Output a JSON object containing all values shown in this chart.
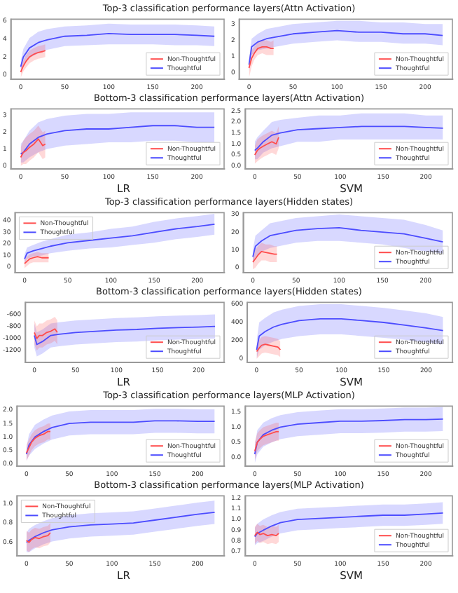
{
  "chart_data": [
    {
      "type": "line",
      "title": "Top-3 classification performance layers(Attn Activation)",
      "xlim": [
        -11,
        231
      ],
      "xticks": [
        0,
        50,
        100,
        150,
        200
      ],
      "ylim": [
        -0.5,
        6.2
      ],
      "yticks": [
        0,
        2,
        4,
        6
      ],
      "legend": "bottom right",
      "marker": "none",
      "series": [
        {
          "name": "Non-Thoughtful",
          "color": "#ff4c4c",
          "x": [
            0,
            3,
            6,
            10,
            15,
            20,
            25,
            28
          ],
          "values": [
            0.3,
            1.0,
            1.5,
            2.0,
            2.3,
            2.5,
            2.6,
            2.7
          ],
          "lower": [
            -0.3,
            0.4,
            0.8,
            1.3,
            1.6,
            1.8,
            1.9,
            2.0
          ],
          "upper": [
            0.9,
            1.6,
            2.2,
            2.7,
            3.0,
            3.2,
            3.3,
            3.4
          ]
        },
        {
          "name": "Thoughtful",
          "color": "#4c4cff",
          "x": [
            0,
            3,
            10,
            20,
            30,
            50,
            75,
            100,
            125,
            150,
            175,
            200,
            220
          ],
          "values": [
            0.9,
            2.0,
            3.0,
            3.6,
            3.9,
            4.3,
            4.4,
            4.6,
            4.5,
            4.5,
            4.5,
            4.4,
            4.3
          ],
          "lower": [
            0.3,
            1.1,
            1.9,
            2.4,
            2.8,
            3.2,
            3.3,
            3.4,
            3.4,
            3.4,
            3.3,
            3.3,
            3.2
          ],
          "upper": [
            1.5,
            2.9,
            4.1,
            4.8,
            5.1,
            5.4,
            5.5,
            5.7,
            5.6,
            5.6,
            5.6,
            5.5,
            5.4
          ]
        }
      ]
    },
    {
      "type": "line",
      "xlim": [
        -11,
        231
      ],
      "xticks": [
        0,
        50,
        100,
        150,
        200
      ],
      "ylim": [
        -0.4,
        3.3
      ],
      "yticks": [
        0,
        1,
        2,
        3
      ],
      "legend": "bottom right",
      "marker": "none",
      "series": [
        {
          "name": "Non-Thoughtful",
          "color": "#ff4c4c",
          "x": [
            0,
            3,
            6,
            10,
            15,
            20,
            25,
            28
          ],
          "values": [
            0.3,
            0.9,
            1.2,
            1.5,
            1.6,
            1.6,
            1.5,
            1.5
          ],
          "lower": [
            -0.3,
            0.4,
            0.8,
            1.1,
            1.2,
            1.1,
            1.1,
            1.1
          ],
          "upper": [
            0.9,
            1.4,
            1.6,
            1.9,
            2.0,
            2.0,
            1.9,
            2.0
          ]
        },
        {
          "name": "Thoughtful",
          "color": "#4c4cff",
          "x": [
            0,
            3,
            10,
            20,
            30,
            50,
            75,
            100,
            125,
            150,
            175,
            200,
            220
          ],
          "values": [
            0.5,
            1.6,
            1.9,
            2.1,
            2.2,
            2.4,
            2.5,
            2.6,
            2.5,
            2.5,
            2.4,
            2.4,
            2.3
          ],
          "lower": [
            0.1,
            1.1,
            1.4,
            1.5,
            1.6,
            1.8,
            1.9,
            2.0,
            1.9,
            1.9,
            1.8,
            1.8,
            1.7
          ],
          "upper": [
            0.9,
            2.1,
            2.4,
            2.7,
            2.8,
            3.0,
            3.1,
            3.2,
            3.2,
            3.1,
            3.1,
            3.0,
            3.0
          ]
        }
      ]
    },
    {
      "type": "line",
      "title": "Bottom-3 classification performance layers(Attn Activation)",
      "xlabel": "LR",
      "xlim": [
        -11,
        231
      ],
      "xticks": [
        0,
        50,
        100,
        150,
        200
      ],
      "ylim": [
        -0.2,
        3.4
      ],
      "yticks": [
        0,
        1,
        2,
        3
      ],
      "legend": "bottom right",
      "marker": "none",
      "series": [
        {
          "name": "Non-Thoughtful",
          "color": "#ff4c4c",
          "x": [
            0,
            3,
            6,
            10,
            15,
            20,
            25,
            28
          ],
          "values": [
            0.5,
            0.8,
            0.9,
            1.1,
            1.3,
            1.6,
            1.2,
            1.3
          ],
          "lower": [
            0.0,
            0.1,
            0.1,
            0.3,
            0.5,
            0.8,
            0.4,
            0.5
          ],
          "upper": [
            1.1,
            1.5,
            1.7,
            1.9,
            2.1,
            2.4,
            2.0,
            2.1
          ]
        },
        {
          "name": "Thoughtful",
          "color": "#4c4cff",
          "x": [
            0,
            3,
            10,
            20,
            30,
            50,
            75,
            100,
            125,
            150,
            175,
            200,
            220
          ],
          "values": [
            0.7,
            0.8,
            1.3,
            1.7,
            1.9,
            2.1,
            2.2,
            2.2,
            2.3,
            2.4,
            2.4,
            2.3,
            2.3
          ],
          "lower": [
            0.2,
            0.2,
            0.5,
            0.8,
            1.0,
            1.2,
            1.3,
            1.4,
            1.4,
            1.5,
            1.5,
            1.4,
            1.4
          ],
          "upper": [
            1.3,
            1.5,
            2.1,
            2.6,
            2.8,
            3.0,
            3.1,
            3.1,
            3.2,
            3.2,
            3.2,
            3.2,
            3.2
          ]
        }
      ]
    },
    {
      "type": "line",
      "xlabel": "SVM",
      "xlim": [
        -11,
        231
      ],
      "xticks": [
        0,
        50,
        100,
        150,
        200
      ],
      "ylim": [
        -0.15,
        2.6
      ],
      "yticks": [
        {
          "value": 0,
          "label": "0.0"
        },
        0.5,
        {
          "value": 1,
          "label": "1.0"
        },
        1.5,
        {
          "value": 2,
          "label": "2.0"
        },
        2.5
      ],
      "legend": "bottom right",
      "marker": "none",
      "series": [
        {
          "name": "Non-Thoughtful",
          "color": "#ff4c4c",
          "x": [
            0,
            3,
            6,
            10,
            15,
            20,
            25,
            28
          ],
          "values": [
            0.5,
            0.7,
            0.8,
            0.9,
            1.0,
            1.1,
            1.0,
            1.3
          ],
          "lower": [
            0.1,
            0.2,
            0.3,
            0.4,
            0.5,
            0.6,
            0.5,
            0.8
          ],
          "upper": [
            0.9,
            1.2,
            1.3,
            1.4,
            1.5,
            1.6,
            1.5,
            1.8
          ]
        },
        {
          "name": "Thoughtful",
          "color": "#4c4cff",
          "x": [
            0,
            3,
            10,
            20,
            30,
            50,
            75,
            100,
            125,
            150,
            175,
            200,
            220
          ],
          "values": [
            0.7,
            0.8,
            1.1,
            1.4,
            1.5,
            1.65,
            1.7,
            1.75,
            1.8,
            1.8,
            1.8,
            1.75,
            1.72
          ],
          "lower": [
            0.3,
            0.3,
            0.6,
            0.8,
            0.9,
            1.1,
            1.1,
            1.2,
            1.2,
            1.2,
            1.2,
            1.2,
            1.2
          ],
          "upper": [
            1.1,
            1.3,
            1.6,
            2.0,
            2.1,
            2.2,
            2.3,
            2.3,
            2.4,
            2.4,
            2.4,
            2.3,
            2.3
          ]
        }
      ]
    },
    {
      "type": "line",
      "title": "Top-3 classification performance layers(Hidden states)",
      "xlim": [
        -11,
        231
      ],
      "xticks": [
        0,
        50,
        100,
        150,
        200
      ],
      "ylim": [
        -5,
        47
      ],
      "yticks": [
        0,
        10,
        20,
        30,
        40
      ],
      "legend": "top left",
      "marker": "none",
      "series": [
        {
          "name": "Non-Thoughtful",
          "color": "#ff4c4c",
          "x": [
            0,
            3,
            6,
            10,
            15,
            20,
            25,
            28
          ],
          "values": [
            3,
            5,
            7,
            8,
            9,
            8,
            8,
            8
          ],
          "lower": [
            -1,
            1,
            3,
            4,
            4,
            4,
            4,
            4
          ],
          "upper": [
            7,
            9,
            11,
            12,
            13,
            12,
            12,
            12
          ]
        },
        {
          "name": "Thoughtful",
          "color": "#4c4cff",
          "x": [
            0,
            3,
            10,
            20,
            30,
            50,
            75,
            100,
            125,
            150,
            175,
            200,
            220
          ],
          "values": [
            7,
            12,
            14,
            16,
            18,
            21,
            23,
            25,
            27,
            30,
            33,
            35,
            37
          ],
          "lower": [
            3,
            7,
            9,
            10,
            12,
            14,
            16,
            17,
            19,
            21,
            24,
            26,
            28
          ],
          "upper": [
            11,
            17,
            19,
            22,
            24,
            28,
            30,
            33,
            35,
            39,
            42,
            44,
            46
          ]
        }
      ]
    },
    {
      "type": "line",
      "xlim": [
        -11,
        231
      ],
      "xticks": [
        0,
        50,
        100,
        150,
        200
      ],
      "ylim": [
        -3,
        31
      ],
      "yticks": [
        0,
        10,
        20,
        30
      ],
      "legend": "bottom right",
      "marker": "none",
      "series": [
        {
          "name": "Non-Thoughtful",
          "color": "#ff4c4c",
          "x": [
            0,
            3,
            6,
            10,
            15,
            20,
            25,
            28
          ],
          "values": [
            3,
            5,
            7,
            9,
            8.5,
            8,
            7.5,
            7.5
          ],
          "lower": [
            -1,
            0,
            2,
            4,
            4,
            3,
            3,
            3
          ],
          "upper": [
            7,
            10,
            12,
            14,
            13,
            13,
            12,
            12
          ]
        },
        {
          "name": "Thoughtful",
          "color": "#4c4cff",
          "x": [
            0,
            3,
            10,
            20,
            30,
            50,
            75,
            100,
            125,
            150,
            175,
            200,
            220
          ],
          "values": [
            6,
            12,
            15,
            18,
            19,
            21,
            22,
            22.5,
            21,
            20,
            19,
            16.5,
            14.5
          ],
          "lower": [
            2,
            6,
            9,
            11,
            12,
            14,
            15,
            15,
            14,
            13,
            11,
            9,
            8
          ],
          "upper": [
            10,
            18,
            21,
            25,
            26,
            28,
            29,
            30,
            29,
            28,
            27,
            24,
            21
          ]
        }
      ]
    },
    {
      "type": "line",
      "title": "Bottom-3 classification performance layers(Hidden states)",
      "xlabel": "LR",
      "xlim": [
        -11,
        231
      ],
      "xticks": [
        0,
        50,
        100,
        150,
        200
      ],
      "ylim": [
        -1400,
        -400
      ],
      "yticks": [
        -1200,
        -1000,
        -800,
        -600
      ],
      "legend": "bottom right",
      "marker": "none",
      "series": [
        {
          "name": "Non-Thoughtful",
          "color": "#ff4c4c",
          "x": [
            0,
            3,
            6,
            10,
            15,
            20,
            25,
            28
          ],
          "values": [
            -900,
            -1000,
            -950,
            -950,
            -900,
            -880,
            -840,
            -900
          ],
          "lower": [
            -1100,
            -1200,
            -1150,
            -1150,
            -1100,
            -1080,
            -1040,
            -1100
          ],
          "upper": [
            -700,
            -800,
            -750,
            -750,
            -700,
            -680,
            -640,
            -700
          ]
        },
        {
          "name": "Thoughtful",
          "color": "#4c4cff",
          "x": [
            0,
            3,
            10,
            20,
            30,
            50,
            75,
            100,
            125,
            150,
            175,
            200,
            220
          ],
          "values": [
            -950,
            -1100,
            -1050,
            -950,
            -930,
            -900,
            -880,
            -860,
            -850,
            -830,
            -820,
            -810,
            -800
          ],
          "lower": [
            -1150,
            -1300,
            -1250,
            -1150,
            -1130,
            -1100,
            -1080,
            -1060,
            -1050,
            -1030,
            -1020,
            -1010,
            -1000
          ],
          "upper": [
            -750,
            -900,
            -850,
            -750,
            -730,
            -700,
            -680,
            -660,
            -650,
            -630,
            -620,
            -610,
            -600
          ]
        }
      ]
    },
    {
      "type": "line",
      "xlabel": "SVM",
      "xlim": [
        -11,
        231
      ],
      "xticks": [
        0,
        50,
        100,
        150,
        200
      ],
      "ylim": [
        -40,
        620
      ],
      "yticks": [
        0,
        200,
        400,
        600
      ],
      "legend": "bottom right",
      "marker": "none",
      "series": [
        {
          "name": "Non-Thoughtful",
          "color": "#ff4c4c",
          "x": [
            0,
            3,
            6,
            10,
            15,
            20,
            25,
            28
          ],
          "values": [
            80,
            120,
            150,
            160,
            150,
            140,
            130,
            100
          ],
          "lower": [
            0,
            30,
            60,
            70,
            60,
            50,
            40,
            20
          ],
          "upper": [
            170,
            210,
            240,
            250,
            240,
            230,
            220,
            190
          ]
        },
        {
          "name": "Thoughtful",
          "color": "#4c4cff",
          "x": [
            0,
            3,
            10,
            20,
            30,
            50,
            75,
            100,
            125,
            150,
            175,
            200,
            220
          ],
          "values": [
            100,
            250,
            300,
            350,
            380,
            420,
            440,
            440,
            420,
            400,
            370,
            340,
            310
          ],
          "lower": [
            0,
            100,
            150,
            190,
            220,
            250,
            270,
            270,
            250,
            230,
            210,
            180,
            160
          ],
          "upper": [
            200,
            400,
            450,
            510,
            540,
            580,
            600,
            600,
            580,
            560,
            530,
            500,
            460
          ]
        }
      ]
    },
    {
      "type": "line",
      "title": "Top-3 classification performance layers(MLP Activation)",
      "xlim": [
        -11,
        231
      ],
      "xticks": [
        0,
        50,
        100,
        150,
        200
      ],
      "ylim": [
        -0.1,
        2.15
      ],
      "yticks": [
        {
          "value": 0,
          "label": "0.0"
        },
        0.5,
        {
          "value": 1,
          "label": "1.0"
        },
        1.5,
        {
          "value": 2,
          "label": "2.0"
        }
      ],
      "legend": "bottom right",
      "marker": "none",
      "series": [
        {
          "name": "Non-Thoughtful",
          "color": "#ff4c4c",
          "x": [
            0,
            3,
            6,
            10,
            15,
            20,
            25,
            28
          ],
          "values": [
            0.4,
            0.6,
            0.8,
            0.95,
            1.05,
            1.1,
            1.2,
            1.2
          ],
          "lower": [
            0.1,
            0.3,
            0.5,
            0.65,
            0.75,
            0.8,
            0.9,
            0.9
          ],
          "upper": [
            0.7,
            0.9,
            1.1,
            1.25,
            1.35,
            1.4,
            1.5,
            1.5
          ]
        },
        {
          "name": "Thoughtful",
          "color": "#4c4cff",
          "x": [
            0,
            3,
            10,
            20,
            30,
            50,
            75,
            100,
            125,
            150,
            175,
            200,
            220
          ],
          "values": [
            0.35,
            0.7,
            1.0,
            1.2,
            1.35,
            1.5,
            1.55,
            1.55,
            1.55,
            1.6,
            1.6,
            1.58,
            1.58
          ],
          "lower": [
            0.1,
            0.3,
            0.55,
            0.75,
            0.9,
            1.05,
            1.1,
            1.1,
            1.1,
            1.15,
            1.15,
            1.13,
            1.13
          ],
          "upper": [
            0.6,
            1.1,
            1.45,
            1.65,
            1.8,
            1.95,
            2.0,
            2.0,
            2.0,
            2.05,
            2.05,
            2.03,
            2.03
          ]
        }
      ]
    },
    {
      "type": "line",
      "xlim": [
        -11,
        231
      ],
      "xticks": [
        0,
        50,
        100,
        150,
        200
      ],
      "ylim": [
        -0.3,
        1.7
      ],
      "yticks": [
        {
          "value": 0,
          "label": "0.0"
        },
        0.5,
        {
          "value": 1,
          "label": "1.0"
        },
        1.5
      ],
      "legend": "bottom right",
      "marker": "none",
      "series": [
        {
          "name": "Non-Thoughtful",
          "color": "#ff4c4c",
          "x": [
            0,
            3,
            6,
            10,
            15,
            20,
            25,
            28
          ],
          "values": [
            0.2,
            0.5,
            0.6,
            0.7,
            0.75,
            0.8,
            0.85,
            0.85
          ],
          "lower": [
            -0.1,
            0.2,
            0.3,
            0.4,
            0.45,
            0.5,
            0.55,
            0.55
          ],
          "upper": [
            0.5,
            0.8,
            0.9,
            1.0,
            1.05,
            1.1,
            1.15,
            1.15
          ]
        },
        {
          "name": "Thoughtful",
          "color": "#4c4cff",
          "x": [
            0,
            3,
            10,
            20,
            30,
            50,
            75,
            100,
            125,
            150,
            175,
            200,
            220
          ],
          "values": [
            0.1,
            0.5,
            0.75,
            0.9,
            1.0,
            1.1,
            1.15,
            1.2,
            1.2,
            1.22,
            1.25,
            1.25,
            1.27
          ],
          "lower": [
            -0.2,
            0.1,
            0.35,
            0.5,
            0.6,
            0.7,
            0.75,
            0.8,
            0.8,
            0.82,
            0.85,
            0.85,
            0.87
          ],
          "upper": [
            0.4,
            0.9,
            1.15,
            1.3,
            1.4,
            1.5,
            1.55,
            1.6,
            1.6,
            1.62,
            1.65,
            1.65,
            1.67
          ]
        }
      ]
    },
    {
      "type": "line",
      "title": "Bottom-3 classification performance layers(MLP Activation)",
      "xlabel": "LR",
      "xlim": [
        -11,
        231
      ],
      "xticks": [
        0,
        50,
        100,
        150,
        200
      ],
      "ylim": [
        0.46,
        1.08
      ],
      "yticks": [
        0.6,
        0.8,
        {
          "value": 1,
          "label": "1.0"
        }
      ],
      "legend": "top left",
      "marker": "none",
      "series": [
        {
          "name": "Non-Thoughtful",
          "color": "#ff4c4c",
          "x": [
            0,
            3,
            6,
            10,
            15,
            20,
            25,
            28
          ],
          "values": [
            0.62,
            0.6,
            0.63,
            0.65,
            0.64,
            0.66,
            0.67,
            0.7
          ],
          "lower": [
            0.52,
            0.5,
            0.53,
            0.55,
            0.54,
            0.56,
            0.57,
            0.6
          ],
          "upper": [
            0.72,
            0.7,
            0.73,
            0.75,
            0.74,
            0.76,
            0.77,
            0.8
          ]
        },
        {
          "name": "Thoughtful",
          "color": "#4c4cff",
          "x": [
            0,
            3,
            10,
            20,
            30,
            50,
            75,
            100,
            125,
            150,
            175,
            200,
            220
          ],
          "values": [
            0.6,
            0.62,
            0.66,
            0.7,
            0.73,
            0.76,
            0.78,
            0.79,
            0.8,
            0.83,
            0.86,
            0.89,
            0.91
          ],
          "lower": [
            0.5,
            0.5,
            0.54,
            0.58,
            0.61,
            0.64,
            0.66,
            0.67,
            0.68,
            0.71,
            0.74,
            0.77,
            0.79
          ],
          "upper": [
            0.7,
            0.74,
            0.78,
            0.82,
            0.85,
            0.88,
            0.9,
            0.91,
            0.92,
            0.95,
            0.98,
            1.01,
            1.03
          ]
        }
      ]
    },
    {
      "type": "line",
      "xlabel": "SVM",
      "xlim": [
        -11,
        231
      ],
      "xticks": [
        0,
        50,
        100,
        150,
        200
      ],
      "ylim": [
        0.66,
        1.22
      ],
      "yticks": [
        0.7,
        0.8,
        0.9,
        {
          "value": 1,
          "label": "1.0"
        },
        1.1,
        1.2
      ],
      "legend": "bottom right",
      "marker": "none",
      "series": [
        {
          "name": "Non-Thoughtful",
          "color": "#ff4c4c",
          "x": [
            0,
            3,
            6,
            10,
            15,
            20,
            25,
            28
          ],
          "values": [
            0.85,
            0.88,
            0.86,
            0.87,
            0.85,
            0.86,
            0.85,
            0.87
          ],
          "lower": [
            0.77,
            0.8,
            0.78,
            0.79,
            0.77,
            0.78,
            0.77,
            0.79
          ],
          "upper": [
            0.93,
            0.96,
            0.94,
            0.95,
            0.93,
            0.94,
            0.93,
            0.95
          ]
        },
        {
          "name": "Thoughtful",
          "color": "#4c4cff",
          "x": [
            0,
            3,
            10,
            20,
            30,
            50,
            75,
            100,
            125,
            150,
            175,
            200,
            220
          ],
          "values": [
            0.84,
            0.87,
            0.9,
            0.94,
            0.97,
            1.0,
            1.01,
            1.02,
            1.03,
            1.04,
            1.04,
            1.05,
            1.06
          ],
          "lower": [
            0.76,
            0.78,
            0.8,
            0.84,
            0.87,
            0.9,
            0.91,
            0.92,
            0.93,
            0.94,
            0.94,
            0.95,
            0.96
          ],
          "upper": [
            0.92,
            0.96,
            1.0,
            1.04,
            1.07,
            1.1,
            1.11,
            1.12,
            1.13,
            1.14,
            1.14,
            1.15,
            1.16
          ]
        }
      ]
    }
  ]
}
